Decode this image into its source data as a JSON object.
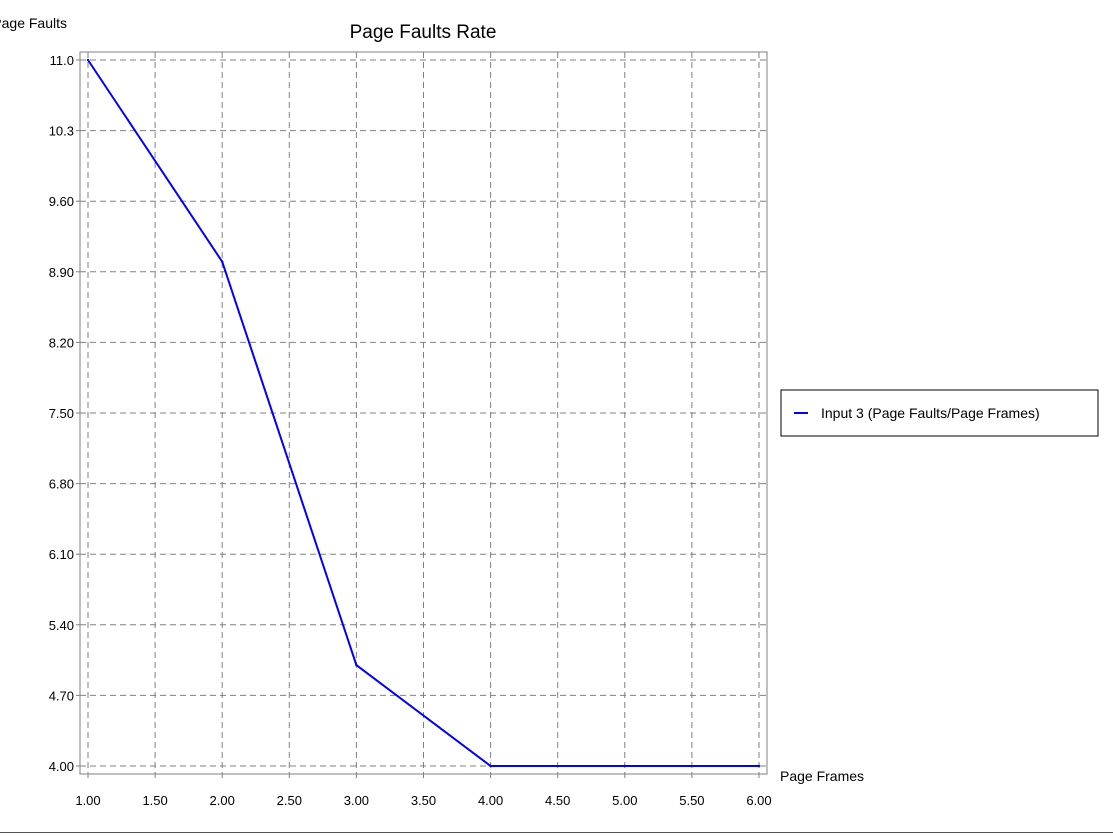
{
  "chart_data": {
    "type": "line",
    "title": "Page Faults Rate",
    "xlabel": "Page Frames",
    "ylabel": "Page Faults",
    "xlim": [
      1.0,
      6.0
    ],
    "ylim": [
      4.0,
      11.0
    ],
    "x_ticks": [
      "1.00",
      "1.50",
      "2.00",
      "2.50",
      "3.00",
      "3.50",
      "4.00",
      "4.50",
      "5.00",
      "5.50",
      "6.00"
    ],
    "y_ticks": [
      "11.0",
      "10.3",
      "9.60",
      "8.90",
      "8.20",
      "7.50",
      "6.80",
      "6.10",
      "5.40",
      "4.70",
      "4.00"
    ],
    "grid": true,
    "legend_position": "right",
    "series": [
      {
        "name": "Input 3 (Page Faults/Page Frames)",
        "color": "#0000ff",
        "x": [
          1,
          2,
          3,
          4,
          5,
          6
        ],
        "y": [
          11,
          9,
          5,
          4,
          4,
          4
        ]
      }
    ]
  }
}
